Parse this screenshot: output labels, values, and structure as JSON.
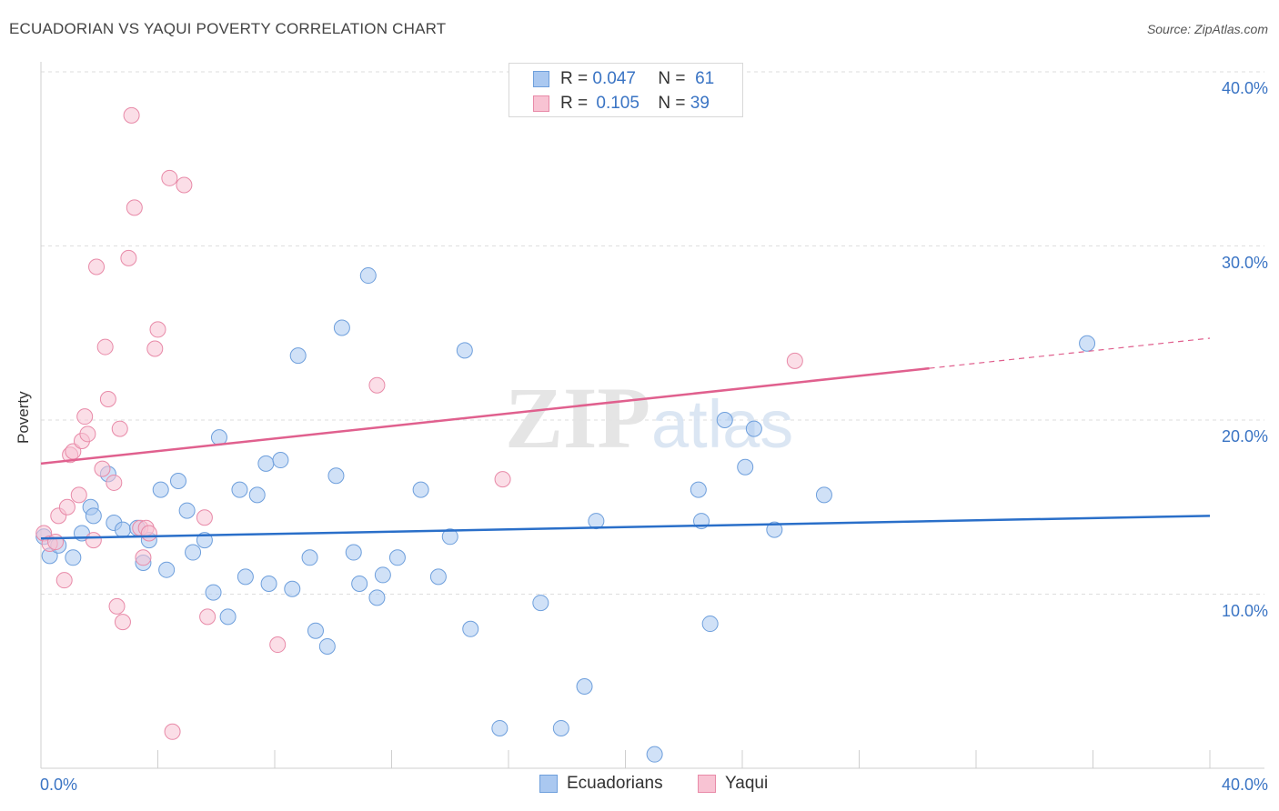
{
  "title": "ECUADORIAN VS YAQUI POVERTY CORRELATION CHART",
  "source": "Source: ZipAtlas.com",
  "legend_top": [
    {
      "r_label": "R =",
      "r_value": "0.047",
      "n_label": "N =",
      "n_value": "61",
      "color": "#aac8f0",
      "border": "#6e9fdc"
    },
    {
      "r_label": "R =",
      "r_value": "0.105",
      "n_label": "N =",
      "n_value": "39",
      "color": "#f8c3d3",
      "border": "#e88aa8"
    }
  ],
  "legend_bottom": [
    {
      "label": "Ecuadorians",
      "color": "#aac8f0",
      "border": "#6e9fdc"
    },
    {
      "label": "Yaqui",
      "color": "#f8c3d3",
      "border": "#e88aa8"
    }
  ],
  "chart_data": {
    "type": "scatter",
    "xlabel": "",
    "ylabel": "Poverty",
    "xlim": [
      0,
      40
    ],
    "ylim": [
      0,
      40
    ],
    "x_tick_labels": [
      "0.0%",
      "40.0%"
    ],
    "y_tick_labels": [
      "10.0%",
      "20.0%",
      "30.0%",
      "40.0%"
    ],
    "y_ticks": [
      10,
      20,
      30,
      40
    ],
    "grid": true,
    "legend_position": "bottom",
    "series": [
      {
        "name": "Ecuadorians",
        "color": "#6e9fdc",
        "fill": "#aac8f0",
        "line_color": "#2a6fc9",
        "trend": {
          "x": [
            0,
            40
          ],
          "y": [
            13.2,
            14.5
          ],
          "dashed_from": null
        },
        "points": [
          [
            0.1,
            13.3
          ],
          [
            0.3,
            12.2
          ],
          [
            0.6,
            12.8
          ],
          [
            1.1,
            12.1
          ],
          [
            1.4,
            13.5
          ],
          [
            1.7,
            15.0
          ],
          [
            1.8,
            14.5
          ],
          [
            2.3,
            16.9
          ],
          [
            2.5,
            14.1
          ],
          [
            2.8,
            13.7
          ],
          [
            3.3,
            13.8
          ],
          [
            3.5,
            11.8
          ],
          [
            3.7,
            13.1
          ],
          [
            4.1,
            16.0
          ],
          [
            4.3,
            11.4
          ],
          [
            4.7,
            16.5
          ],
          [
            5.0,
            14.8
          ],
          [
            5.2,
            12.4
          ],
          [
            5.6,
            13.1
          ],
          [
            5.9,
            10.1
          ],
          [
            6.1,
            19.0
          ],
          [
            6.4,
            8.7
          ],
          [
            6.8,
            16.0
          ],
          [
            7.0,
            11.0
          ],
          [
            7.4,
            15.7
          ],
          [
            7.7,
            17.5
          ],
          [
            7.8,
            10.6
          ],
          [
            8.2,
            17.7
          ],
          [
            8.6,
            10.3
          ],
          [
            8.8,
            23.7
          ],
          [
            9.2,
            12.1
          ],
          [
            9.4,
            7.9
          ],
          [
            9.8,
            7.0
          ],
          [
            10.1,
            16.8
          ],
          [
            10.3,
            25.3
          ],
          [
            10.7,
            12.4
          ],
          [
            10.9,
            10.6
          ],
          [
            11.2,
            28.3
          ],
          [
            11.5,
            9.8
          ],
          [
            11.7,
            11.1
          ],
          [
            12.2,
            12.1
          ],
          [
            13.0,
            16.0
          ],
          [
            13.6,
            11.0
          ],
          [
            14.0,
            13.3
          ],
          [
            14.5,
            24.0
          ],
          [
            14.7,
            8.0
          ],
          [
            15.7,
            2.3
          ],
          [
            17.1,
            9.5
          ],
          [
            17.8,
            2.3
          ],
          [
            18.6,
            4.7
          ],
          [
            19.0,
            14.2
          ],
          [
            21.0,
            0.8
          ],
          [
            22.5,
            16.0
          ],
          [
            22.6,
            14.2
          ],
          [
            22.9,
            8.3
          ],
          [
            23.4,
            20.0
          ],
          [
            24.1,
            17.3
          ],
          [
            24.4,
            19.5
          ],
          [
            25.1,
            13.7
          ],
          [
            26.8,
            15.7
          ],
          [
            35.8,
            24.4
          ]
        ]
      },
      {
        "name": "Yaqui",
        "color": "#e88aa8",
        "fill": "#f8c3d3",
        "line_color": "#e0608e",
        "trend": {
          "x": [
            0,
            40
          ],
          "y": [
            17.5,
            24.7
          ],
          "dashed_from": 30.4
        },
        "points": [
          [
            0.1,
            13.5
          ],
          [
            0.3,
            12.9
          ],
          [
            0.5,
            13.0
          ],
          [
            0.6,
            14.5
          ],
          [
            0.8,
            10.8
          ],
          [
            0.9,
            15.0
          ],
          [
            1.0,
            18.0
          ],
          [
            1.1,
            18.2
          ],
          [
            1.3,
            15.7
          ],
          [
            1.4,
            18.8
          ],
          [
            1.5,
            20.2
          ],
          [
            1.6,
            19.2
          ],
          [
            1.8,
            13.1
          ],
          [
            1.9,
            28.8
          ],
          [
            2.1,
            17.2
          ],
          [
            2.2,
            24.2
          ],
          [
            2.3,
            21.2
          ],
          [
            2.5,
            16.4
          ],
          [
            2.6,
            9.3
          ],
          [
            2.7,
            19.5
          ],
          [
            2.8,
            8.4
          ],
          [
            3.0,
            29.3
          ],
          [
            3.1,
            37.5
          ],
          [
            3.2,
            32.2
          ],
          [
            3.4,
            13.8
          ],
          [
            3.5,
            12.1
          ],
          [
            3.6,
            13.8
          ],
          [
            3.7,
            13.5
          ],
          [
            3.9,
            24.1
          ],
          [
            4.0,
            25.2
          ],
          [
            4.4,
            33.9
          ],
          [
            4.5,
            2.1
          ],
          [
            4.9,
            33.5
          ],
          [
            5.6,
            14.4
          ],
          [
            5.7,
            8.7
          ],
          [
            8.1,
            7.1
          ],
          [
            11.5,
            22.0
          ],
          [
            15.8,
            16.6
          ],
          [
            25.8,
            23.4
          ]
        ]
      }
    ]
  }
}
